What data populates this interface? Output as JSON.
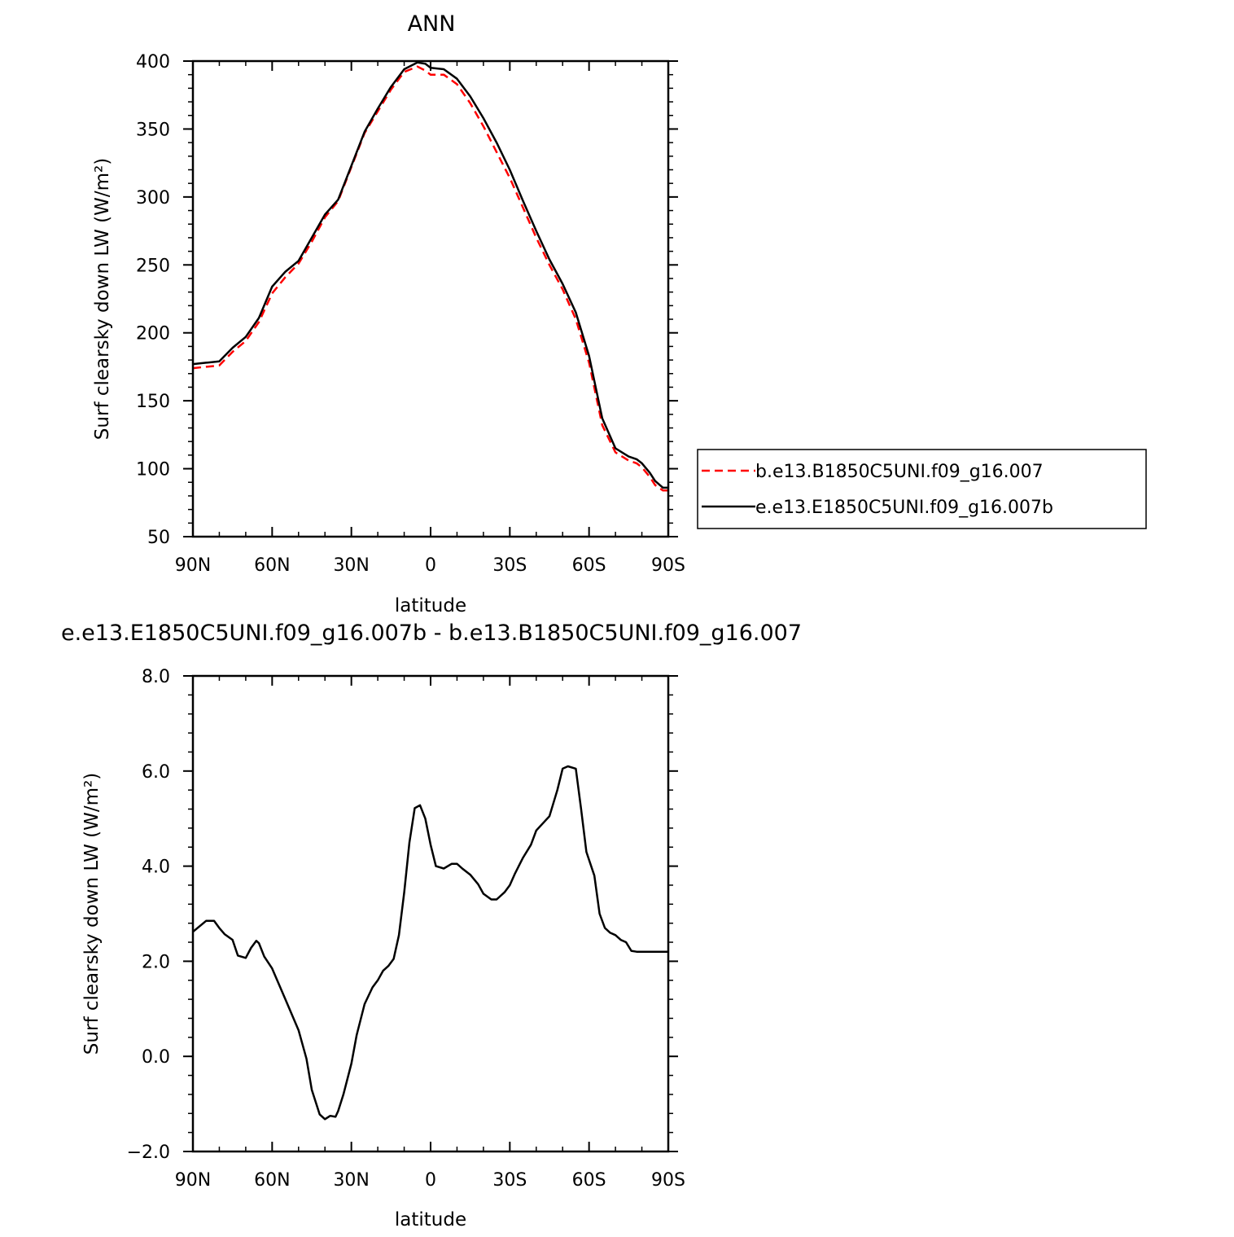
{
  "colors": {
    "case1": "#ff0000",
    "case2": "#000000"
  },
  "chart_data": [
    {
      "type": "line",
      "title": "ANN",
      "xlabel": "latitude",
      "ylabel": "Surf clearsky down LW (W/m²)",
      "xlim": [
        90,
        -90
      ],
      "ylim": [
        50,
        400
      ],
      "xticks": [
        90,
        60,
        30,
        0,
        -30,
        -60,
        -90
      ],
      "xtick_labels": [
        "90N",
        "60N",
        "30N",
        "0",
        "30S",
        "60S",
        "90S"
      ],
      "yticks": [
        50,
        100,
        150,
        200,
        250,
        300,
        350,
        400
      ],
      "ytick_labels": [
        "50",
        "100",
        "150",
        "200",
        "250",
        "300",
        "350",
        "400"
      ],
      "legend_position": "right",
      "grid": false,
      "series": [
        {
          "name": "b.e13.B1850C5UNI.f09_g16.007",
          "style": "dashed",
          "color": "#ff0000",
          "x": [
            90,
            85,
            80,
            75,
            70,
            65,
            60,
            55,
            50,
            45,
            40,
            35,
            30,
            25,
            20,
            15,
            10,
            5,
            2,
            0,
            -5,
            -10,
            -15,
            -20,
            -25,
            -30,
            -35,
            -40,
            -45,
            -50,
            -55,
            -60,
            -65,
            -70,
            -75,
            -78,
            -80,
            -83,
            -85,
            -88,
            -90
          ],
          "values": [
            174,
            175,
            176,
            186,
            194,
            208,
            229,
            241,
            251,
            267,
            285,
            297,
            322,
            347,
            363,
            379,
            392,
            396,
            393,
            390,
            390,
            383,
            369,
            352,
            333,
            314,
            292,
            270,
            250,
            232,
            210,
            178,
            132,
            112,
            106,
            104,
            101,
            94,
            88,
            84,
            84
          ]
        },
        {
          "name": "e.e13.E1850C5UNI.f09_g16.007b",
          "style": "solid",
          "color": "#000000",
          "x": [
            90,
            85,
            80,
            75,
            70,
            65,
            60,
            55,
            50,
            45,
            40,
            35,
            30,
            25,
            20,
            15,
            10,
            5,
            2,
            0,
            -5,
            -10,
            -15,
            -20,
            -25,
            -30,
            -35,
            -40,
            -45,
            -50,
            -55,
            -60,
            -65,
            -70,
            -75,
            -78,
            -80,
            -83,
            -85,
            -88,
            -90
          ],
          "values": [
            177,
            178,
            179,
            189,
            197,
            211,
            234,
            245,
            253,
            270,
            287,
            298,
            323,
            348,
            365,
            381,
            394,
            399,
            398,
            395,
            394,
            387,
            374,
            358,
            340,
            320,
            297,
            275,
            254,
            236,
            215,
            183,
            137,
            115,
            109,
            107,
            104,
            97,
            91,
            86,
            86
          ]
        }
      ]
    },
    {
      "type": "line",
      "title": "e.e13.E1850C5UNI.f09_g16.007b - b.e13.B1850C5UNI.f09_g16.007",
      "xlabel": "latitude",
      "ylabel": "Surf clearsky down LW (W/m²)",
      "xlim": [
        90,
        -90
      ],
      "ylim": [
        -2,
        8
      ],
      "xticks": [
        90,
        60,
        30,
        0,
        -30,
        -60,
        -90
      ],
      "xtick_labels": [
        "90N",
        "60N",
        "30N",
        "0",
        "30S",
        "60S",
        "90S"
      ],
      "yticks": [
        -2,
        0,
        2,
        4,
        6,
        8
      ],
      "ytick_labels": [
        "−2.0",
        "0.0",
        "2.0",
        "4.0",
        "6.0",
        "8.0"
      ],
      "grid": false,
      "series": [
        {
          "style": "solid",
          "color": "#000000",
          "x": [
            90,
            85,
            82,
            80,
            78,
            75,
            73,
            70,
            68,
            66,
            65,
            63,
            60,
            55,
            50,
            47,
            45,
            42,
            40,
            38,
            36,
            35,
            33,
            30,
            28,
            25,
            22,
            20,
            18,
            16,
            14,
            12,
            10,
            8,
            6,
            4,
            2,
            0,
            -2,
            -5,
            -8,
            -10,
            -12,
            -15,
            -18,
            -20,
            -23,
            -25,
            -28,
            -30,
            -32,
            -35,
            -38,
            -40,
            -45,
            -48,
            -50,
            -52,
            -55,
            -57,
            -59,
            -62,
            -64,
            -66,
            -68,
            -70,
            -72,
            -74,
            -76,
            -78,
            -80,
            -82,
            -84,
            -86,
            -88,
            -90
          ],
          "values": [
            2.62,
            2.85,
            2.85,
            2.7,
            2.57,
            2.45,
            2.12,
            2.07,
            2.28,
            2.43,
            2.38,
            2.1,
            1.85,
            1.2,
            0.55,
            -0.05,
            -0.7,
            -1.22,
            -1.32,
            -1.25,
            -1.27,
            -1.15,
            -0.8,
            -0.15,
            0.45,
            1.1,
            1.45,
            1.6,
            1.8,
            1.9,
            2.05,
            2.55,
            3.45,
            4.5,
            5.22,
            5.28,
            5.0,
            4.45,
            4.0,
            3.95,
            4.05,
            4.05,
            3.95,
            3.82,
            3.62,
            3.42,
            3.3,
            3.3,
            3.45,
            3.6,
            3.85,
            4.18,
            4.45,
            4.75,
            5.05,
            5.6,
            6.05,
            6.1,
            6.05,
            5.2,
            4.3,
            3.8,
            3.0,
            2.7,
            2.6,
            2.55,
            2.45,
            2.4,
            2.22,
            2.2,
            2.2,
            2.2,
            2.2,
            2.2,
            2.2,
            2.2
          ]
        }
      ]
    }
  ]
}
